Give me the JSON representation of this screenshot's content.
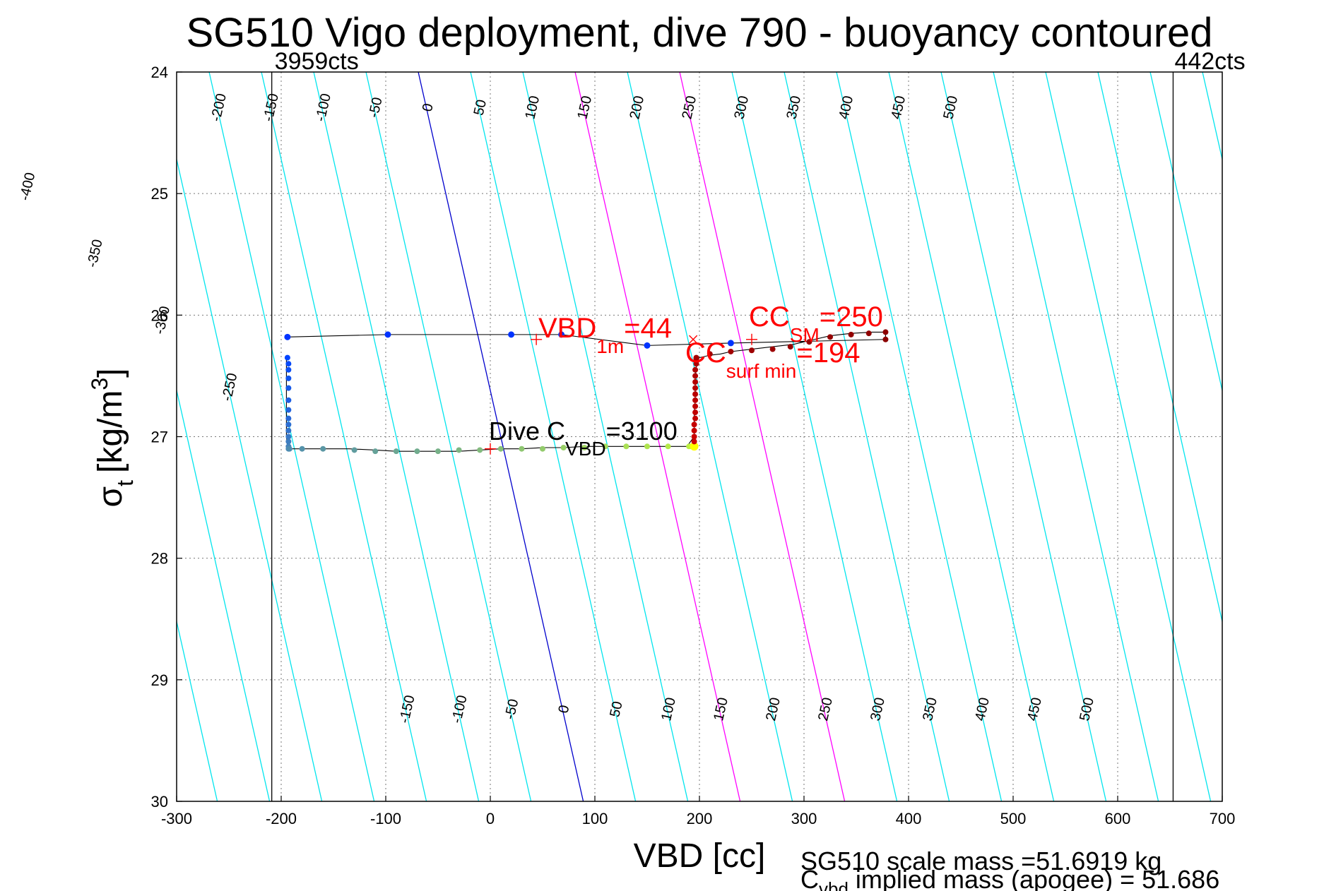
{
  "chart_data": {
    "type": "scatter",
    "title": "SG510 Vigo deployment, dive 790 - buoyancy contoured",
    "xlabel": "VBD [cc]",
    "ylabel_main": "σ",
    "ylabel_sub": "t",
    "ylabel_units": "[kg/m",
    "ylabel_sup": "3",
    "ylabel_close": "]",
    "xlim": [
      -300,
      700
    ],
    "ylim": [
      24,
      30
    ],
    "y_reversed": true,
    "grid": true,
    "x_ticks": [
      "-300",
      "-200",
      "-100",
      "0",
      "100",
      "200",
      "300",
      "400",
      "500",
      "600",
      "700"
    ],
    "y_ticks": [
      "24",
      "25",
      "26",
      "27",
      "28",
      "29",
      "30"
    ],
    "vbd_limits": [
      {
        "vbd": -209,
        "label": "3959cts"
      },
      {
        "vbd": 653,
        "label": "442cts"
      }
    ],
    "buoyancy_contours": {
      "values": [
        -400,
        -350,
        -300,
        -250,
        -200,
        -150,
        -100,
        -50,
        0,
        50,
        100,
        150,
        200,
        250,
        300,
        350,
        400,
        450,
        500
      ],
      "reference_vbd_at_sigma_27": 10,
      "cc_per_unit_sigma": 26.3,
      "highlight": {
        "0": "#0000cc",
        "150": "#ff00ff",
        "250": "#ff00ff"
      },
      "top_labels": [
        "-400",
        "-350",
        "-300",
        "-250",
        "-200",
        "-150",
        "-100",
        "-50",
        "0",
        "50",
        "100",
        "150",
        "200",
        "250",
        "300",
        "350",
        "400",
        "450",
        "500"
      ],
      "bottom_labels": [
        "-150",
        "-100",
        "-50",
        "0",
        "50",
        "100",
        "150",
        "200",
        "250",
        "300",
        "350",
        "400",
        "450",
        "500"
      ]
    },
    "track": {
      "x": [
        -195,
        -195,
        -195,
        -195,
        -194,
        -193,
        -180,
        -160,
        -135,
        -110,
        -90,
        -70,
        -50,
        -30,
        -10,
        10,
        30,
        50,
        70,
        90,
        110,
        130,
        150,
        170,
        188,
        195,
        195,
        196,
        196,
        196,
        197,
        197,
        198,
        200,
        210,
        220,
        230,
        250,
        270,
        290,
        310,
        325,
        345,
        365,
        378,
        378,
        230,
        150,
        68,
        20,
        -98,
        -194
      ],
      "y": [
        26.35,
        26.7,
        26.9,
        27.0,
        27.08,
        27.1,
        27.1,
        27.1,
        27.1,
        27.11,
        27.12,
        27.12,
        27.12,
        27.12,
        27.11,
        27.1,
        27.1,
        27.09,
        27.09,
        27.08,
        27.08,
        27.08,
        27.08,
        27.08,
        27.08,
        27.0,
        26.8,
        26.7,
        26.6,
        26.5,
        26.45,
        26.4,
        26.37,
        26.35,
        26.33,
        26.32,
        26.3,
        26.28,
        26.26,
        26.24,
        26.2,
        26.17,
        26.15,
        26.14,
        26.14,
        26.2,
        26.23,
        26.25,
        26.16,
        26.16,
        26.16,
        26.18
      ]
    },
    "descent_points": {
      "x": [
        -194,
        -193,
        -193,
        -193,
        -193,
        -193,
        -193,
        -193,
        -193,
        -193,
        -193,
        -193,
        -193,
        -193,
        -192,
        -180,
        -160,
        -130,
        -110,
        -90,
        -70,
        -50,
        -30,
        -10,
        10,
        30,
        50,
        70,
        90,
        110,
        130,
        150,
        170,
        190,
        192,
        194,
        195
      ],
      "y": [
        26.35,
        26.4,
        26.45,
        26.52,
        26.6,
        26.7,
        26.78,
        26.85,
        26.9,
        26.95,
        27.0,
        27.04,
        27.08,
        27.1,
        27.1,
        27.1,
        27.1,
        27.11,
        27.12,
        27.12,
        27.12,
        27.12,
        27.11,
        27.11,
        27.1,
        27.1,
        27.1,
        27.09,
        27.09,
        27.08,
        27.08,
        27.08,
        27.08,
        27.08,
        27.08,
        27.08,
        27.08
      ]
    },
    "ascent_points": {
      "x": [
        195,
        195,
        195,
        195,
        196,
        196,
        196,
        196,
        196,
        196,
        196,
        196,
        196,
        197,
        197,
        197,
        197,
        210,
        230,
        250,
        270,
        287,
        305,
        325,
        345,
        362,
        378,
        378
      ],
      "y": [
        27.04,
        27.0,
        26.95,
        26.9,
        26.85,
        26.8,
        26.75,
        26.7,
        26.65,
        26.6,
        26.55,
        26.5,
        26.45,
        26.4,
        26.37,
        26.36,
        26.35,
        26.32,
        26.3,
        26.29,
        26.28,
        26.26,
        26.22,
        26.18,
        26.16,
        26.15,
        26.14,
        26.2
      ]
    },
    "surface_points": {
      "x": [
        -194,
        -98,
        20,
        68,
        150,
        230
      ],
      "y": [
        26.18,
        26.16,
        26.16,
        26.16,
        26.25,
        26.23
      ]
    },
    "markers": [
      {
        "vbd": 44,
        "sigma": 26.2,
        "symbol": "+"
      },
      {
        "vbd": 250,
        "sigma": 26.2,
        "symbol": "+"
      },
      {
        "vbd": 194,
        "sigma": 26.2,
        "symbol": "x"
      },
      {
        "vbd": 0,
        "sigma": 27.1,
        "symbol": "+"
      }
    ],
    "annotations": {
      "vbd1m_main": "VBD",
      "vbd1m_sub": "1m",
      "vbd1m_val": "=44",
      "ccsm_main": "CC",
      "ccsm_sub": "SM",
      "ccsm_val": "=250",
      "ccsurf_main": "CC",
      "ccsurf_sub": "surf min",
      "ccsurf_val": "=194",
      "dive_main": "Dive C",
      "dive_sub": "VBD",
      "dive_val": "=3100"
    },
    "footer": {
      "scale_mass": "SG510 scale mass =51.6919 kg",
      "implied_main": "C",
      "implied_sub": "vbd",
      "implied_rest": " implied mass (apogee) = 51.686"
    },
    "colors": {
      "contour": "#00e5ee",
      "zero_contour": "#0000cc",
      "highlight_contour": "#ff00ff",
      "annotation": "#ff0000",
      "descent_start": "#0044ff",
      "descent_end": "#ccff33",
      "apogee": "#ffff00",
      "ascent": "#cc0000",
      "ascent_end": "#8b0000"
    }
  }
}
